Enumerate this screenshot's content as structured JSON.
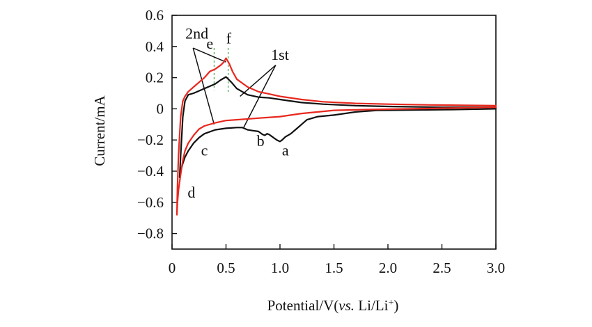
{
  "chart_data": {
    "type": "line",
    "xlabel": {
      "main": "Potential/V(",
      "italic": "vs.",
      "tail": " Li/Li",
      "sup": "+",
      "close": ")"
    },
    "ylabel": "Current/mA",
    "xlim": [
      0,
      3.0
    ],
    "ylim": [
      -0.9,
      0.6
    ],
    "x_ticks": [
      0,
      0.5,
      1.0,
      1.5,
      2.0,
      2.5,
      3.0
    ],
    "x_tick_labels": [
      "0",
      "0.5",
      "1.0",
      "1.5",
      "2.0",
      "2.5",
      "3.0"
    ],
    "y_ticks": [
      0.6,
      0.4,
      0.2,
      0,
      -0.2,
      -0.4,
      -0.6,
      -0.8
    ],
    "y_tick_labels": [
      "0.6",
      "0.4",
      "0.2",
      "0",
      "−0.2",
      "−0.4",
      "−0.6",
      "−0.8"
    ],
    "grid": false,
    "series": [
      {
        "name": "1st",
        "color": "#111111",
        "x": [
          3.0,
          2.6,
          2.2,
          1.9,
          1.7,
          1.5,
          1.35,
          1.25,
          1.2,
          1.15,
          1.1,
          1.05,
          1.02,
          1.0,
          0.97,
          0.95,
          0.93,
          0.9,
          0.88,
          0.86,
          0.84,
          0.82,
          0.8,
          0.75,
          0.7,
          0.65,
          0.6,
          0.5,
          0.4,
          0.3,
          0.25,
          0.2,
          0.15,
          0.12,
          0.1,
          0.08,
          0.07,
          0.08,
          0.1,
          0.12,
          0.15,
          0.2,
          0.3,
          0.4,
          0.45,
          0.5,
          0.55,
          0.6,
          0.7,
          0.8,
          0.9,
          1.0,
          1.2,
          1.4,
          1.7,
          2.0,
          2.5,
          3.0
        ],
        "y": [
          0.0,
          -0.005,
          -0.008,
          -0.01,
          -0.02,
          -0.04,
          -0.05,
          -0.07,
          -0.1,
          -0.13,
          -0.16,
          -0.18,
          -0.2,
          -0.21,
          -0.2,
          -0.19,
          -0.18,
          -0.165,
          -0.16,
          -0.17,
          -0.165,
          -0.155,
          -0.145,
          -0.14,
          -0.135,
          -0.12,
          -0.12,
          -0.125,
          -0.135,
          -0.16,
          -0.185,
          -0.22,
          -0.27,
          -0.31,
          -0.35,
          -0.4,
          -0.44,
          -0.3,
          -0.05,
          0.05,
          0.09,
          0.1,
          0.13,
          0.16,
          0.185,
          0.205,
          0.17,
          0.13,
          0.09,
          0.075,
          0.07,
          0.06,
          0.04,
          0.03,
          0.02,
          0.015,
          0.01,
          0.01
        ]
      },
      {
        "name": "2nd",
        "color": "#e8281e",
        "x": [
          3.0,
          2.6,
          2.2,
          1.8,
          1.5,
          1.2,
          1.0,
          0.8,
          0.6,
          0.5,
          0.4,
          0.3,
          0.25,
          0.2,
          0.15,
          0.12,
          0.1,
          0.08,
          0.06,
          0.05,
          0.045,
          0.05,
          0.06,
          0.08,
          0.1,
          0.12,
          0.15,
          0.2,
          0.3,
          0.35,
          0.4,
          0.45,
          0.48,
          0.5,
          0.53,
          0.56,
          0.6,
          0.7,
          0.8,
          0.9,
          1.0,
          1.2,
          1.4,
          1.7,
          2.0,
          2.4,
          3.0
        ],
        "y": [
          0.01,
          0.005,
          0.0,
          -0.005,
          -0.01,
          -0.03,
          -0.05,
          -0.06,
          -0.07,
          -0.075,
          -0.09,
          -0.11,
          -0.13,
          -0.17,
          -0.22,
          -0.27,
          -0.33,
          -0.42,
          -0.52,
          -0.6,
          -0.68,
          -0.5,
          -0.3,
          -0.05,
          0.05,
          0.08,
          0.11,
          0.14,
          0.2,
          0.24,
          0.255,
          0.28,
          0.3,
          0.325,
          0.29,
          0.24,
          0.19,
          0.14,
          0.11,
          0.095,
          0.08,
          0.06,
          0.045,
          0.035,
          0.03,
          0.025,
          0.02
        ]
      }
    ],
    "annotations": [
      {
        "text": "2nd",
        "x": 0.23,
        "y": 0.45
      },
      {
        "text": "1st",
        "x": 1.0,
        "y": 0.315
      },
      {
        "text": "e",
        "x": 0.35,
        "y": 0.385
      },
      {
        "text": "f",
        "x": 0.525,
        "y": 0.42
      },
      {
        "text": "a",
        "x": 1.05,
        "y": -0.3
      },
      {
        "text": "b",
        "x": 0.82,
        "y": -0.24
      },
      {
        "text": "c",
        "x": 0.3,
        "y": -0.3
      },
      {
        "text": "d",
        "x": 0.18,
        "y": -0.57
      }
    ],
    "peak_markers": [
      {
        "label": "e",
        "x": 0.39,
        "y_top": 0.39,
        "y_bottom": 0.12,
        "color": "#4caf50"
      },
      {
        "label": "f",
        "x": 0.52,
        "y_top": 0.39,
        "y_bottom": 0.1,
        "color": "#4caf50"
      }
    ],
    "leader_lines": [
      {
        "label": "2nd",
        "from": [
          0.195,
          0.39
        ],
        "to": [
          [
            0.5,
            0.3
          ],
          [
            0.39,
            -0.1
          ]
        ]
      },
      {
        "label": "1st",
        "from": [
          0.96,
          0.28
        ],
        "to": [
          [
            0.63,
            0.08
          ],
          [
            0.66,
            -0.125
          ]
        ]
      }
    ]
  }
}
